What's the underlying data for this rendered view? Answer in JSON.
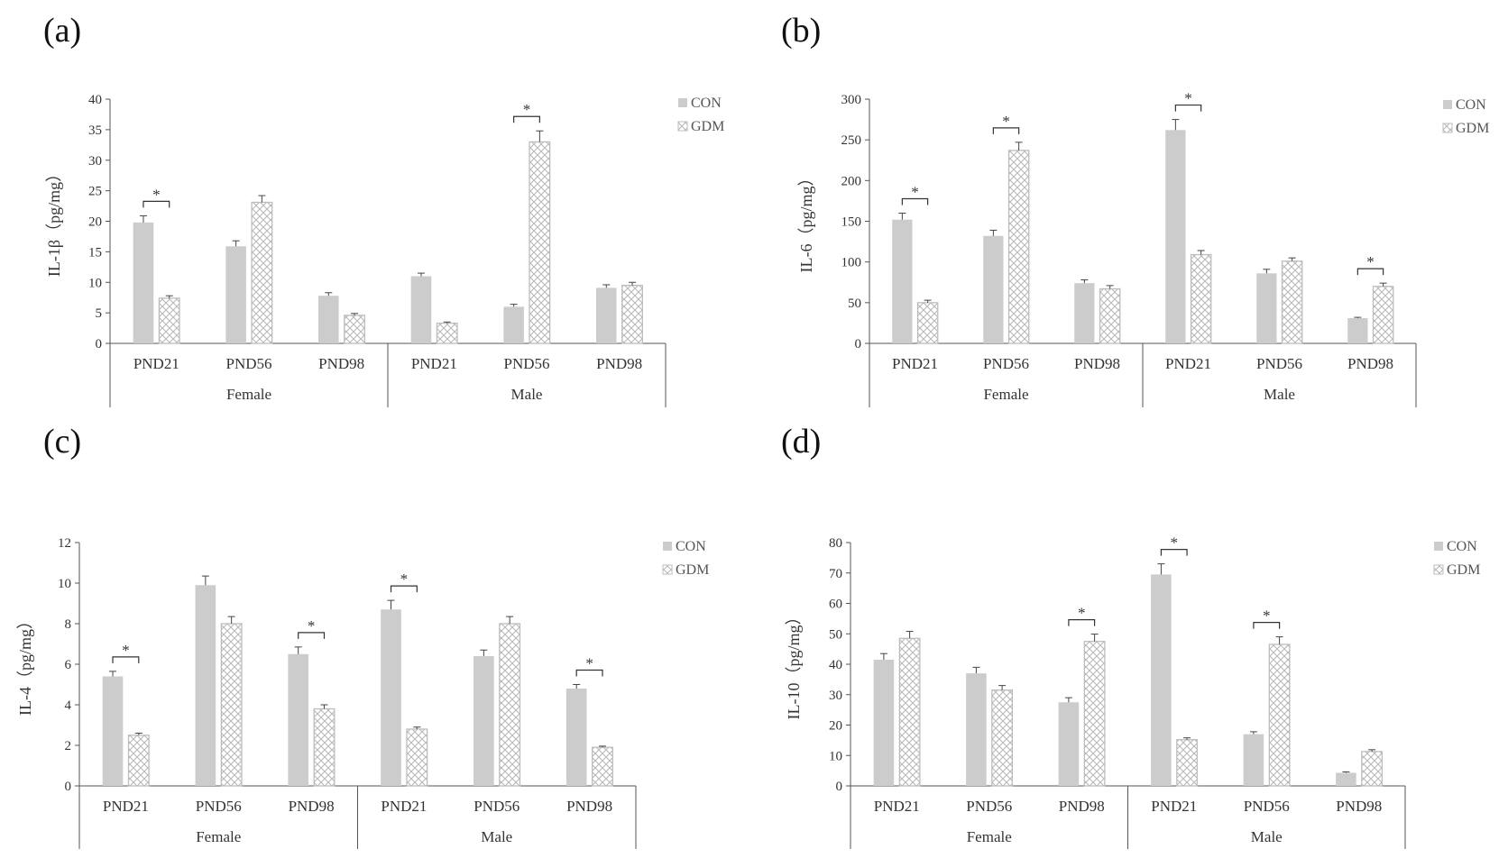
{
  "panel_labels": [
    "(a)",
    "(b)",
    "(c)",
    "(d)"
  ],
  "colors": {
    "con": "#cccccc",
    "gdm_fill": "#ffffff",
    "gdm_hatch": "#bdbdbd",
    "axis": "#555555",
    "errorbar": "#444444"
  },
  "chart_data": [
    {
      "type": "bar",
      "ylabel": "IL-1β（pg/mg）",
      "ylim": [
        0,
        40
      ],
      "yticks": [
        0,
        5,
        10,
        15,
        20,
        25,
        30,
        35,
        40
      ],
      "categories": [
        "PND21",
        "PND56",
        "PND98",
        "PND21",
        "PND56",
        "PND98"
      ],
      "groups": [
        "Female",
        "Male"
      ],
      "legend": {
        "position": "top-right",
        "entries": [
          "CON",
          "GDM"
        ]
      },
      "series": [
        {
          "name": "CON",
          "values": [
            19.8,
            15.9,
            7.8,
            11.0,
            6.0,
            9.1
          ],
          "errors": [
            1.1,
            0.9,
            0.5,
            0.5,
            0.4,
            0.5
          ]
        },
        {
          "name": "GDM",
          "values": [
            7.4,
            23.1,
            4.6,
            3.3,
            33.0,
            9.5
          ],
          "errors": [
            0.4,
            1.1,
            0.3,
            0.2,
            1.8,
            0.5
          ]
        }
      ],
      "significance": [
        {
          "category": 0,
          "label": "*"
        },
        {
          "category": 4,
          "label": "*"
        }
      ]
    },
    {
      "type": "bar",
      "ylabel": "IL-6（pg/mg）",
      "ylim": [
        0,
        300
      ],
      "yticks": [
        0,
        50,
        100,
        150,
        200,
        250,
        300
      ],
      "categories": [
        "PND21",
        "PND56",
        "PND98",
        "PND21",
        "PND56",
        "PND98"
      ],
      "groups": [
        "Female",
        "Male"
      ],
      "legend": {
        "position": "top-right",
        "entries": [
          "CON",
          "GDM"
        ]
      },
      "series": [
        {
          "name": "CON",
          "values": [
            152,
            132,
            74,
            262,
            86,
            31
          ],
          "errors": [
            8,
            7,
            4,
            13,
            5,
            1
          ]
        },
        {
          "name": "GDM",
          "values": [
            50,
            237,
            67,
            109,
            101,
            70
          ],
          "errors": [
            3,
            10,
            4,
            5,
            4,
            4
          ]
        }
      ],
      "significance": [
        {
          "category": 0,
          "label": "*"
        },
        {
          "category": 1,
          "label": "*"
        },
        {
          "category": 3,
          "label": "*"
        },
        {
          "category": 5,
          "label": "*"
        }
      ]
    },
    {
      "type": "bar",
      "ylabel": "IL-4（pg/mg）",
      "ylim": [
        0,
        12
      ],
      "yticks": [
        0,
        2,
        4,
        6,
        8,
        10,
        12
      ],
      "categories": [
        "PND21",
        "PND56",
        "PND98",
        "PND21",
        "PND56",
        "PND98"
      ],
      "groups": [
        "Female",
        "Male"
      ],
      "legend": {
        "position": "top-right",
        "entries": [
          "CON",
          "GDM"
        ]
      },
      "series": [
        {
          "name": "CON",
          "values": [
            5.4,
            9.9,
            6.5,
            8.7,
            6.4,
            4.8
          ],
          "errors": [
            0.25,
            0.45,
            0.35,
            0.45,
            0.3,
            0.2
          ]
        },
        {
          "name": "GDM",
          "values": [
            2.5,
            8.0,
            3.8,
            2.8,
            8.0,
            1.9
          ],
          "errors": [
            0.1,
            0.35,
            0.2,
            0.1,
            0.35,
            0.06
          ]
        }
      ],
      "significance": [
        {
          "category": 0,
          "label": "*"
        },
        {
          "category": 2,
          "label": "*"
        },
        {
          "category": 3,
          "label": "*"
        },
        {
          "category": 5,
          "label": "*"
        }
      ]
    },
    {
      "type": "bar",
      "ylabel": "IL-10（pg/mg）",
      "ylim": [
        0,
        80
      ],
      "yticks": [
        0,
        10,
        20,
        30,
        40,
        50,
        60,
        70,
        80
      ],
      "categories": [
        "PND21",
        "PND56",
        "PND98",
        "PND21",
        "PND56",
        "PND98"
      ],
      "groups": [
        "Female",
        "Male"
      ],
      "legend": {
        "position": "top-right",
        "entries": [
          "CON",
          "GDM"
        ]
      },
      "series": [
        {
          "name": "CON",
          "values": [
            41.5,
            37.0,
            27.5,
            69.5,
            17.0,
            4.3
          ],
          "errors": [
            2.0,
            2.0,
            1.5,
            3.5,
            0.8,
            0.3
          ]
        },
        {
          "name": "GDM",
          "values": [
            48.5,
            31.5,
            47.5,
            15.2,
            46.5,
            11.3
          ],
          "errors": [
            2.3,
            1.5,
            2.4,
            0.6,
            2.5,
            0.6
          ]
        }
      ],
      "significance": [
        {
          "category": 2,
          "label": "*"
        },
        {
          "category": 3,
          "label": "*"
        },
        {
          "category": 4,
          "label": "*"
        }
      ]
    }
  ]
}
